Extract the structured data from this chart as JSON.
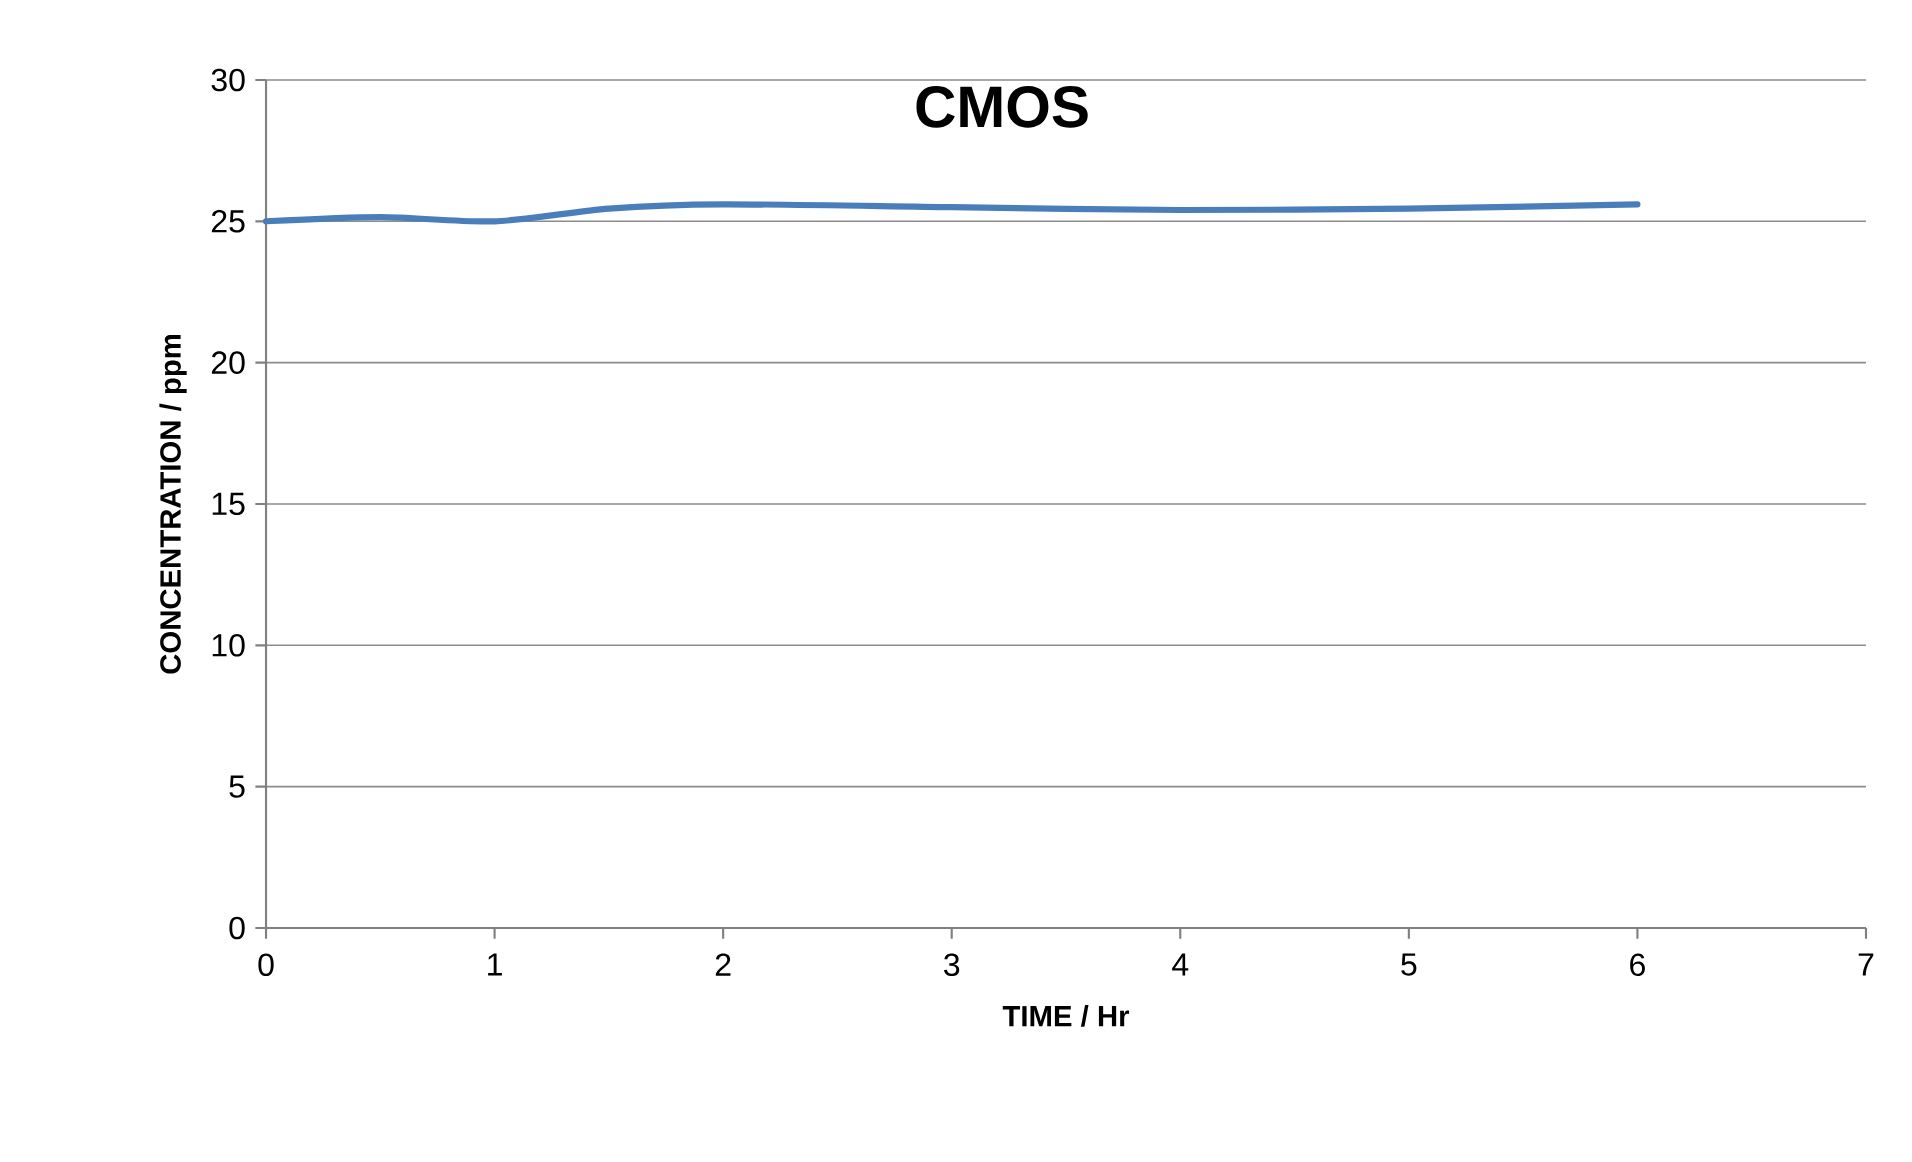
{
  "chart_data": {
    "type": "line",
    "title": "CMOS",
    "xlabel": "TIME / Hr",
    "ylabel": "CONCENTRATION / ppm",
    "x": [
      0,
      0.5,
      1,
      1.5,
      2,
      3,
      4,
      5,
      6
    ],
    "series": [
      {
        "color": "#4a7ebb",
        "values": [
          25.0,
          25.15,
          25.0,
          25.45,
          25.6,
          25.5,
          25.4,
          25.45,
          25.6
        ]
      }
    ],
    "xlim": [
      0,
      7
    ],
    "ylim": [
      0,
      30
    ],
    "xticks": [
      0,
      1,
      2,
      3,
      4,
      5,
      6,
      7
    ],
    "yticks": [
      0,
      5,
      10,
      15,
      20,
      25,
      30
    ],
    "grid": "y",
    "marker": "none",
    "line_style": "solid"
  }
}
